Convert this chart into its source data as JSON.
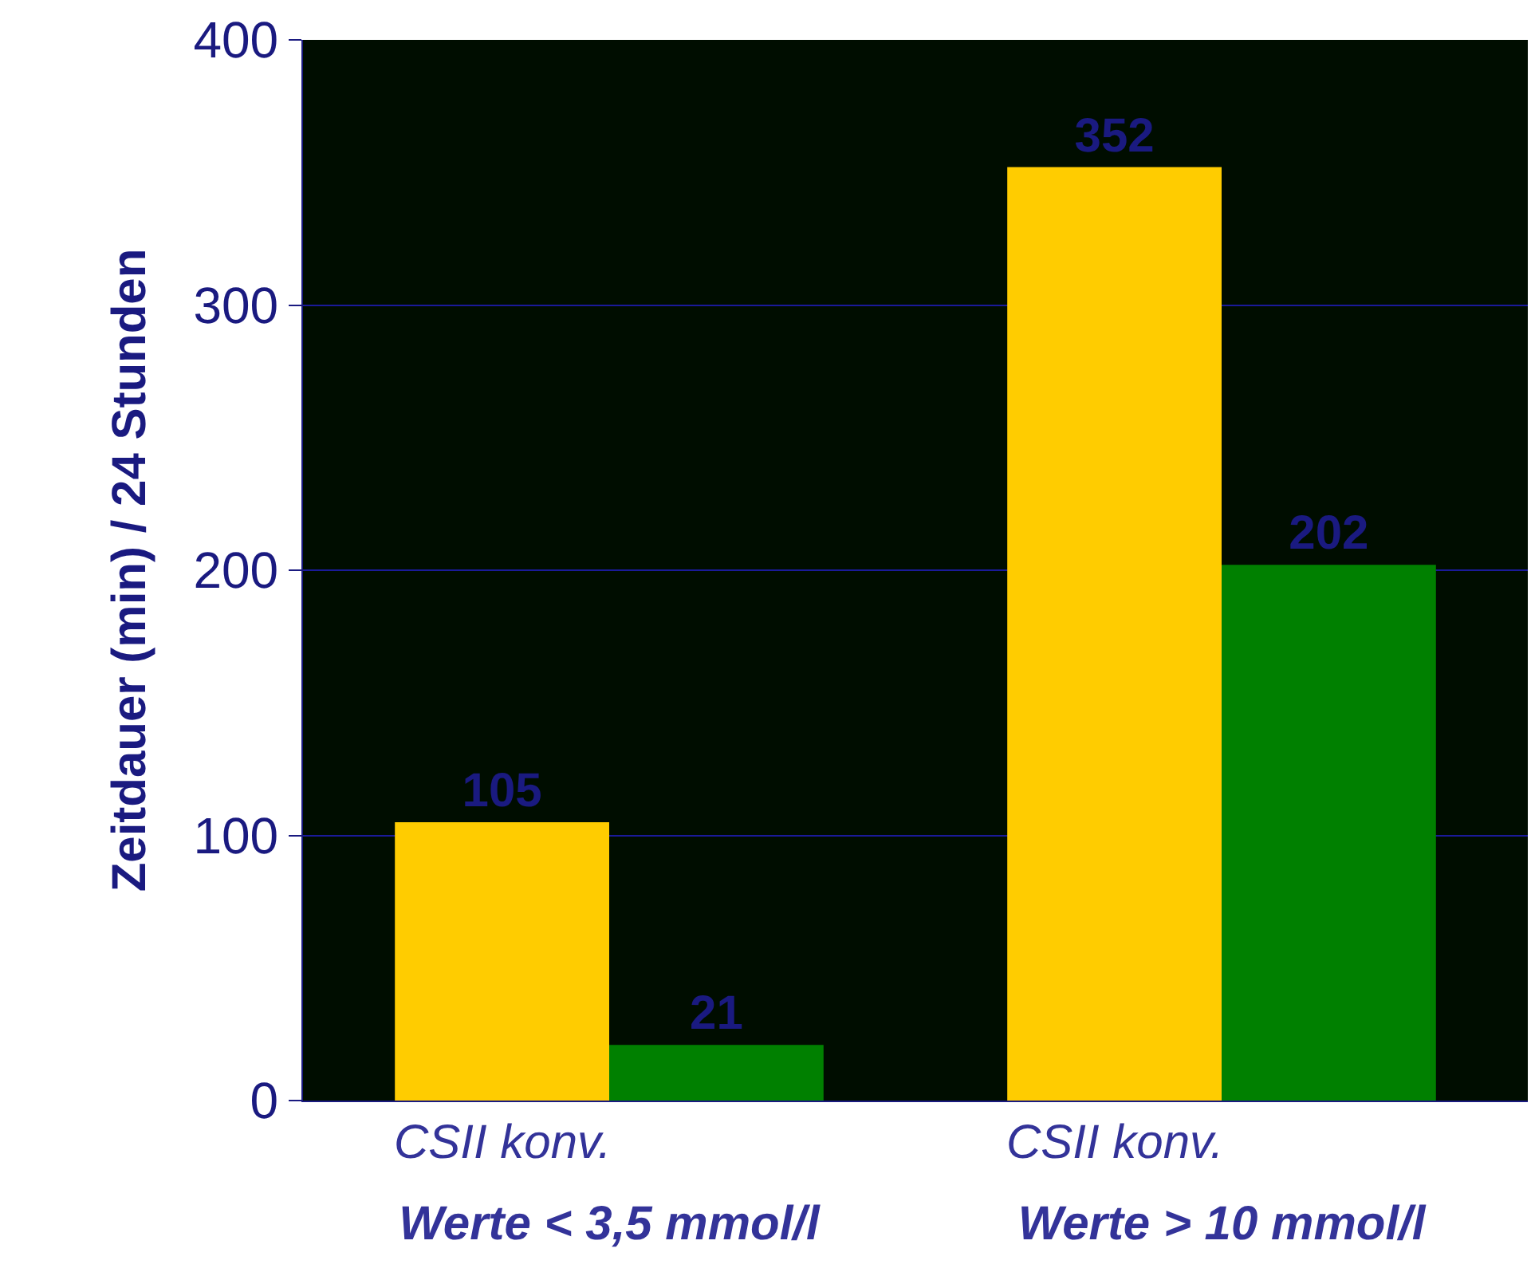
{
  "chart_data": {
    "type": "bar",
    "ylabel": "Zeitdauer (min) / 24 Stunden",
    "categories": [
      "Werte < 3,5 mmol/l",
      "Werte > 10 mmol/l"
    ],
    "series": [
      {
        "name": "CSII konv.",
        "color": "#ffcc00",
        "values": [
          105,
          352
        ]
      },
      {
        "color": "#008000",
        "values": [
          21,
          202
        ]
      }
    ],
    "ylim": [
      0,
      400
    ],
    "yticks": [
      0,
      100,
      200,
      300,
      400
    ],
    "grid": "y",
    "legend": false,
    "data_labels": true
  }
}
